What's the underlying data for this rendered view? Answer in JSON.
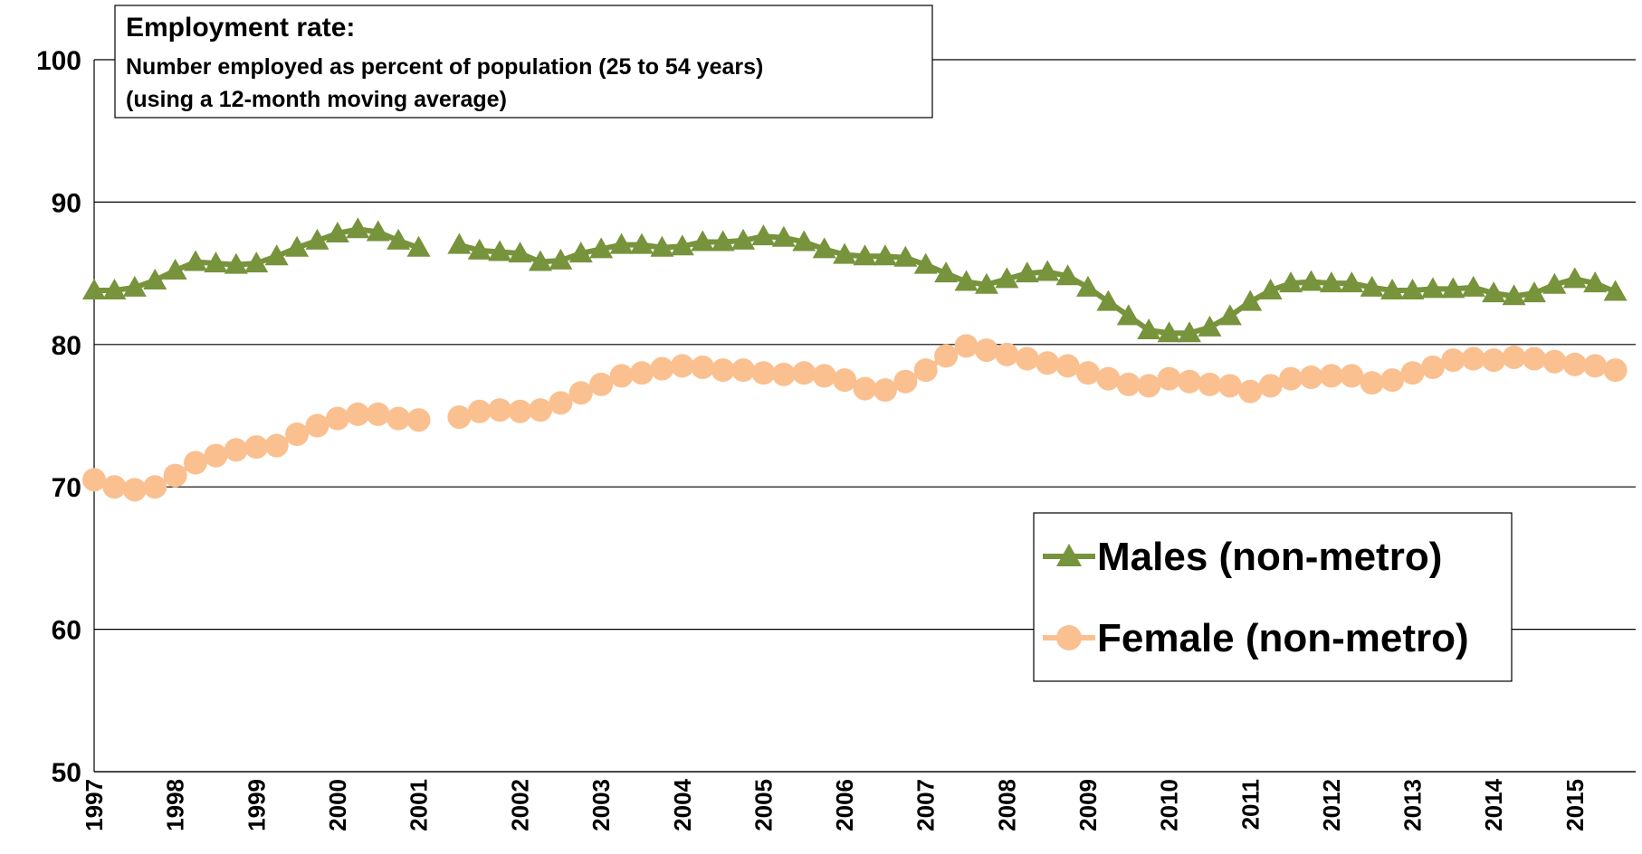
{
  "chart_data": {
    "type": "line",
    "title": "Employment rate:",
    "subtitle": [
      "Number employed as percent of population (25 to 54 years)",
      "(using a 12-month moving average)"
    ],
    "categories": [
      "1997",
      null,
      null,
      null,
      "1998",
      null,
      null,
      null,
      "1999",
      null,
      null,
      null,
      "2000",
      null,
      null,
      null,
      "2001",
      null,
      null,
      null,
      null,
      "2002",
      null,
      null,
      null,
      "2003",
      null,
      null,
      null,
      "2004",
      null,
      null,
      null,
      "2005",
      null,
      null,
      null,
      "2006",
      null,
      null,
      null,
      "2007",
      null,
      null,
      null,
      "2008",
      null,
      null,
      null,
      "2009",
      null,
      null,
      null,
      "2010",
      null,
      null,
      null,
      "2011",
      null,
      null,
      null,
      "2012",
      null,
      null,
      null,
      "2013",
      null,
      null,
      null,
      "2014",
      null,
      null,
      null,
      "2015",
      null,
      null
    ],
    "series": [
      {
        "name": "Males (non-metro)",
        "color": "#77933c",
        "marker": "triangle",
        "values": [
          83.8,
          83.8,
          84.0,
          84.5,
          85.2,
          85.8,
          85.7,
          85.6,
          85.7,
          86.2,
          86.8,
          87.3,
          87.8,
          88.1,
          87.9,
          87.3,
          86.8,
          null,
          87.0,
          86.6,
          86.5,
          86.4,
          85.8,
          85.9,
          86.4,
          86.7,
          87.0,
          87.0,
          86.8,
          86.9,
          87.2,
          87.2,
          87.3,
          87.6,
          87.5,
          87.2,
          86.7,
          86.3,
          86.2,
          86.2,
          86.1,
          85.6,
          85.0,
          84.4,
          84.2,
          84.6,
          85.0,
          85.1,
          84.8,
          84.0,
          83.0,
          82.0,
          81.0,
          80.8,
          80.8,
          81.2,
          82.0,
          83.0,
          83.8,
          84.3,
          84.4,
          84.3,
          84.3,
          84.0,
          83.8,
          83.8,
          83.9,
          83.9,
          84.0,
          83.6,
          83.4,
          83.6,
          84.2,
          84.6,
          84.3,
          83.7
        ]
      },
      {
        "name": "Female (non-metro)",
        "color": "#fac090",
        "marker": "circle",
        "values": [
          70.5,
          70.0,
          69.8,
          70.0,
          70.8,
          71.7,
          72.2,
          72.6,
          72.8,
          72.9,
          73.7,
          74.3,
          74.8,
          75.1,
          75.1,
          74.8,
          74.7,
          null,
          74.9,
          75.3,
          75.4,
          75.3,
          75.4,
          75.9,
          76.6,
          77.2,
          77.8,
          78.0,
          78.3,
          78.5,
          78.4,
          78.2,
          78.2,
          78.0,
          77.9,
          78.0,
          77.8,
          77.5,
          76.9,
          76.8,
          77.4,
          78.2,
          79.2,
          79.9,
          79.6,
          79.3,
          79.0,
          78.7,
          78.5,
          78.0,
          77.6,
          77.2,
          77.1,
          77.6,
          77.4,
          77.2,
          77.1,
          76.7,
          77.1,
          77.6,
          77.7,
          77.8,
          77.8,
          77.3,
          77.5,
          78.0,
          78.4,
          78.9,
          79.0,
          78.9,
          79.1,
          79.0,
          78.8,
          78.6,
          78.5,
          78.2
        ]
      }
    ],
    "ylim": [
      50,
      100
    ],
    "yticks": [
      50,
      60,
      70,
      80,
      90,
      100
    ],
    "grid": true
  }
}
